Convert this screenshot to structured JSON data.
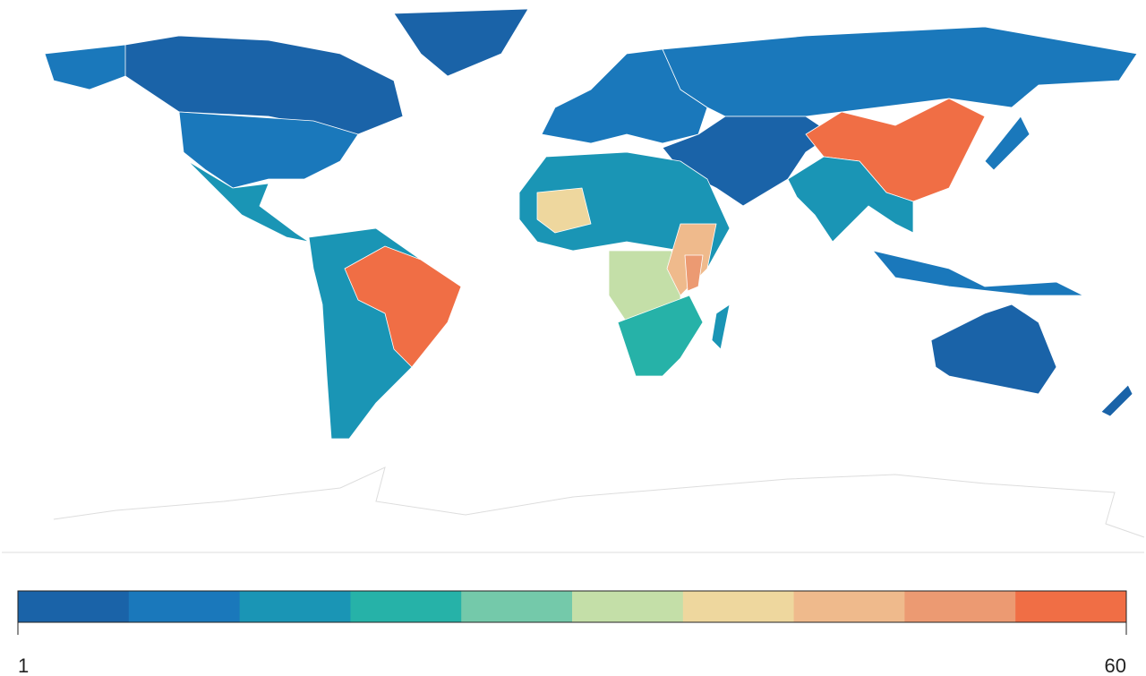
{
  "colorbar": {
    "range": [
      1,
      60
    ],
    "ticks": [
      1,
      60
    ],
    "colors": [
      "#1a63a8",
      "#1a78bb",
      "#1a95b5",
      "#26b2a8",
      "#74c9aa",
      "#c4dfa8",
      "#eed79e",
      "#efba8c",
      "#ec9a72",
      "#f06e45"
    ]
  }
}
